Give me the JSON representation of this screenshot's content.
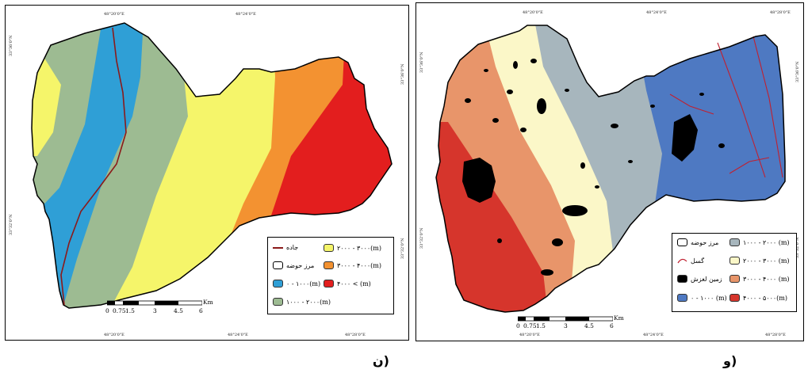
{
  "colors": {
    "yellow": "#f5f56a",
    "green": "#9dbb92",
    "blue": "#2f9fd6",
    "orange": "#f39231",
    "red": "#e31e1e",
    "road": "#8b1a1a",
    "cream": "#fbf7c8",
    "greyblue": "#a7b6bd",
    "salmon": "#e8956a",
    "darkred": "#d6352c",
    "deepblue": "#4e79c2",
    "fault": "#c02030",
    "landslide": "#000000"
  },
  "left_map": {
    "top_ticks": [
      "48°20'0\"E",
      "48°24'0\"E"
    ],
    "bottom_ticks": [
      "48°20'0\"E",
      "48°24'0\"E",
      "48°28'0\"E"
    ],
    "left_ticks": [
      "33°36'0\"N",
      "33°32'0\"N"
    ],
    "right_ticks": [
      "33°36'0\"N",
      "33°32'0\"N"
    ],
    "legend": {
      "items": [
        {
          "label": "۲۰۰۰ - ۳۰۰۰(m)",
          "icon": "yellow-swatch"
        },
        {
          "label": "جاده",
          "icon": "road-line-icon"
        },
        {
          "label": "۳۰۰۰ - ۴۰۰۰(m)",
          "icon": "orange-swatch"
        },
        {
          "label": "مرز حوضه",
          "icon": "boundary-swatch"
        },
        {
          "label": "۰ - ۱۰۰۰(m)",
          "icon": "blue-swatch"
        },
        {
          "label": "۴۰۰۰ < (m)",
          "icon": "red-swatch"
        },
        {
          "label": "۱۰۰۰ - ۲۰۰۰(m)",
          "icon": "green-swatch"
        }
      ]
    },
    "scale": {
      "unit": "Km",
      "labels": [
        "0",
        "0.75",
        "1.5",
        "3",
        "4.5",
        "6"
      ]
    },
    "caption": "ن)"
  },
  "right_map": {
    "top_ticks": [
      "48°20'0\"E",
      "48°24'0\"E",
      "48°28'0\"E"
    ],
    "bottom_ticks": [
      "48°20'0\"E",
      "48°24'0\"E",
      "48°28'0\"E"
    ],
    "left_ticks": [
      "33°36'0\"N",
      "33°32'0\"N"
    ],
    "right_ticks": [
      "33°36'0\"N",
      "33°32'0\"N"
    ],
    "legend": {
      "items": [
        {
          "label": "۱۰۰۰ - ۲۰۰۰ (m)",
          "icon": "greyblue-swatch"
        },
        {
          "label": "مرز حوضه",
          "icon": "boundary-swatch"
        },
        {
          "label": "۲۰۰۰ - ۳۰۰۰ (m)",
          "icon": "cream-swatch"
        },
        {
          "label": "گسل",
          "icon": "fault-line-icon"
        },
        {
          "label": "۳۰۰۰ - ۴۰۰۰ (m)",
          "icon": "salmon-swatch"
        },
        {
          "label": "زمین لغزش",
          "icon": "landslide-swatch"
        },
        {
          "label": "۰ - ۱۰۰۰ (m)",
          "icon": "deepblue-swatch"
        },
        {
          "label": "۴۰۰۰ - ۵۰۰۰(m)",
          "icon": "darkred-swatch"
        }
      ]
    },
    "scale": {
      "unit": "Km",
      "labels": [
        "0",
        "0.75",
        "1.5",
        "3",
        "4.5",
        "6"
      ]
    },
    "caption": "و)"
  }
}
